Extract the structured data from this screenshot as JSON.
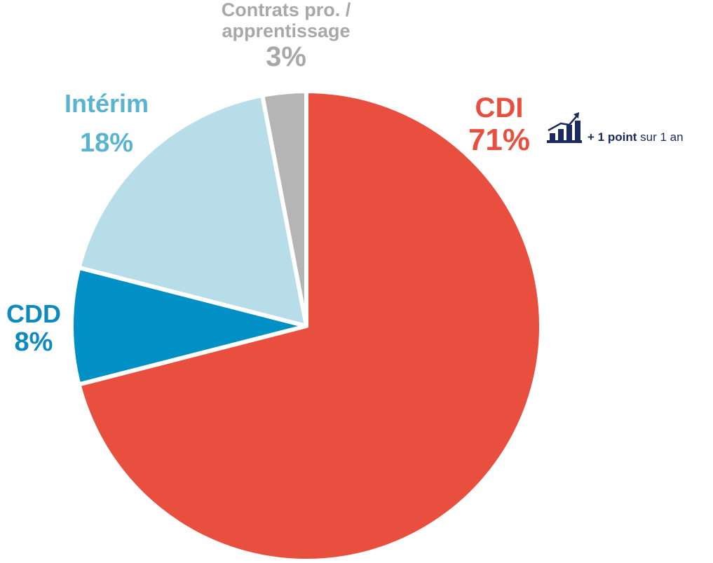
{
  "chart_data": {
    "type": "pie",
    "categories": [
      "CDI",
      "CDD",
      "Intérim",
      "Contrats pro. / apprentissage"
    ],
    "values": [
      71,
      8,
      18,
      3
    ],
    "value_labels": [
      "71%",
      "8%",
      "18%",
      "3%"
    ],
    "colors": [
      "#e94f3f",
      "#0090c6",
      "#b7dde8",
      "#b5b5b5"
    ],
    "label_colors": [
      "#e94f3f",
      "#0f8ac0",
      "#5ab4cf",
      "#a8a8a8"
    ],
    "annotation": {
      "bold": "+ 1 point",
      "text": "sur 1 an"
    }
  }
}
